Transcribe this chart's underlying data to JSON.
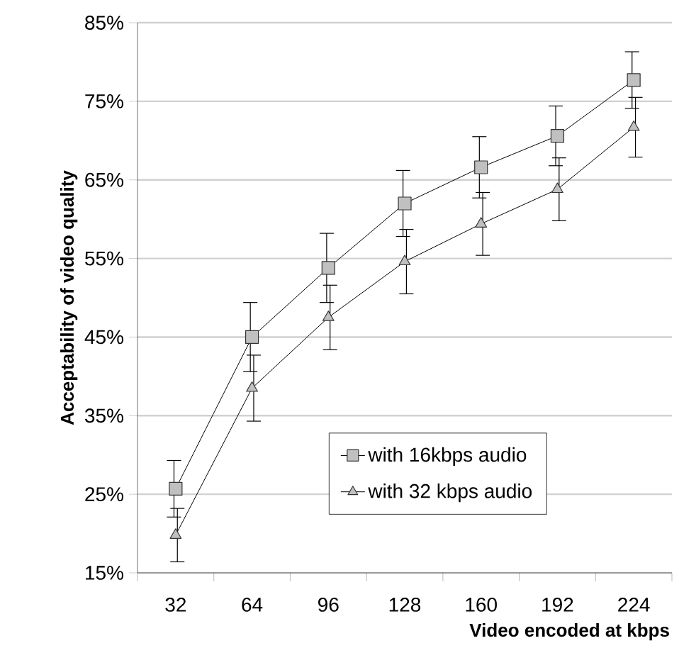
{
  "chart_data": {
    "type": "line",
    "xlabel": "Video encoded at kbps",
    "ylabel": "Acceptability of video quality",
    "categories": [
      "32",
      "64",
      "96",
      "128",
      "160",
      "192",
      "224"
    ],
    "series": [
      {
        "name": "with 16kbps audio",
        "color": "#c0c0c0",
        "marker": "square",
        "values": [
          25.7,
          45.0,
          53.8,
          62.0,
          66.6,
          70.6,
          77.7
        ],
        "errors": [
          3.6,
          4.4,
          4.4,
          4.2,
          3.9,
          3.8,
          3.6
        ]
      },
      {
        "name": "with 32 kbps audio",
        "color": "#c0c0c0",
        "marker": "triangle",
        "values": [
          19.8,
          38.5,
          47.5,
          54.6,
          59.4,
          63.8,
          71.7
        ],
        "errors": [
          3.4,
          4.2,
          4.1,
          4.1,
          4.0,
          4.0,
          3.8
        ]
      }
    ],
    "ylim": [
      15,
      85
    ],
    "yticks": [
      {
        "value": 15,
        "label": "15%"
      },
      {
        "value": 25,
        "label": "25%"
      },
      {
        "value": 35,
        "label": "35%"
      },
      {
        "value": 45,
        "label": "45%"
      },
      {
        "value": 55,
        "label": "55%"
      },
      {
        "value": 65,
        "label": "65%"
      },
      {
        "value": 75,
        "label": "75%"
      },
      {
        "value": 85,
        "label": "85%"
      }
    ],
    "grid": "y",
    "legend": "bottom right",
    "line_style": "solid"
  }
}
